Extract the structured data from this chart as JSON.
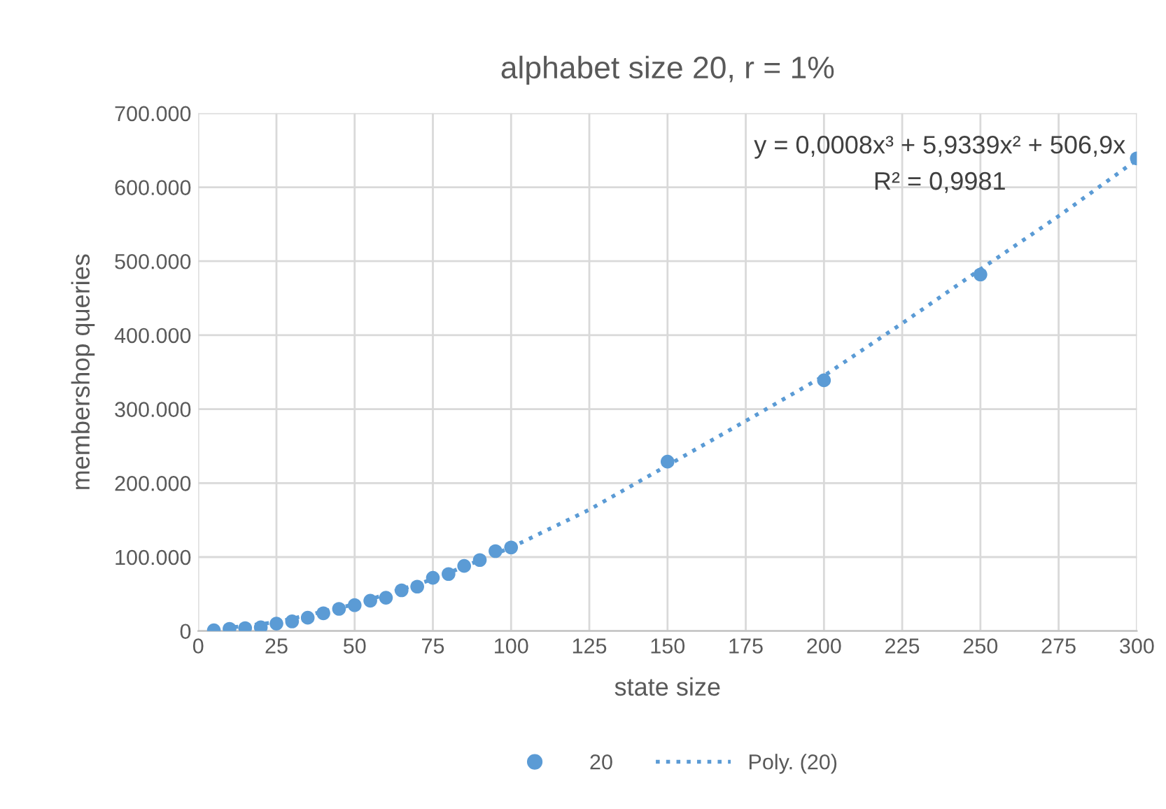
{
  "chart_data": {
    "type": "scatter",
    "title": "alphabet size 20, r = 1%",
    "xlabel": "state size",
    "ylabel": "membershop queries",
    "series": [
      {
        "name": "20",
        "color": "#5b9bd5",
        "marker": "circle",
        "x": [
          5,
          10,
          15,
          20,
          25,
          30,
          35,
          40,
          45,
          50,
          55,
          60,
          65,
          70,
          75,
          80,
          85,
          90,
          95,
          100,
          150,
          200,
          250,
          300
        ],
        "values": [
          1000,
          3000,
          4000,
          5000,
          10000,
          13000,
          18000,
          24000,
          30000,
          35000,
          41000,
          45000,
          55000,
          60000,
          72000,
          77000,
          88000,
          96000,
          108000,
          113000,
          229000,
          339000,
          482000,
          639000
        ]
      },
      {
        "name": "Poly. (20)",
        "type": "line",
        "color": "#5b9bd5",
        "line_style": "dotted",
        "x": [
          5,
          25,
          50,
          75,
          100,
          125,
          150,
          175,
          200,
          225,
          250,
          275,
          300
        ],
        "values": [
          2000,
          12000,
          36000,
          70000,
          113000,
          164000,
          224000,
          284000,
          345000,
          416000,
          489000,
          561000,
          637000
        ]
      }
    ],
    "xlim": [
      0,
      300
    ],
    "xticks": [
      0,
      25,
      50,
      75,
      100,
      125,
      150,
      175,
      200,
      225,
      250,
      275,
      300
    ],
    "ylim": [
      0,
      700000
    ],
    "yticks": [
      {
        "value": 0,
        "label": "0"
      },
      {
        "value": 100000,
        "label": "100.000"
      },
      {
        "value": 200000,
        "label": "200.000"
      },
      {
        "value": 300000,
        "label": "300.000"
      },
      {
        "value": 400000,
        "label": "400.000"
      },
      {
        "value": 500000,
        "label": "500.000"
      },
      {
        "value": 600000,
        "label": "600.000"
      },
      {
        "value": 700000,
        "label": "700.000"
      }
    ],
    "annotations": [
      "y = 0,0008x³ + 5,9339x² + 506,9x",
      "R² = 0,9981"
    ],
    "grid": true,
    "legend": "bottom"
  }
}
